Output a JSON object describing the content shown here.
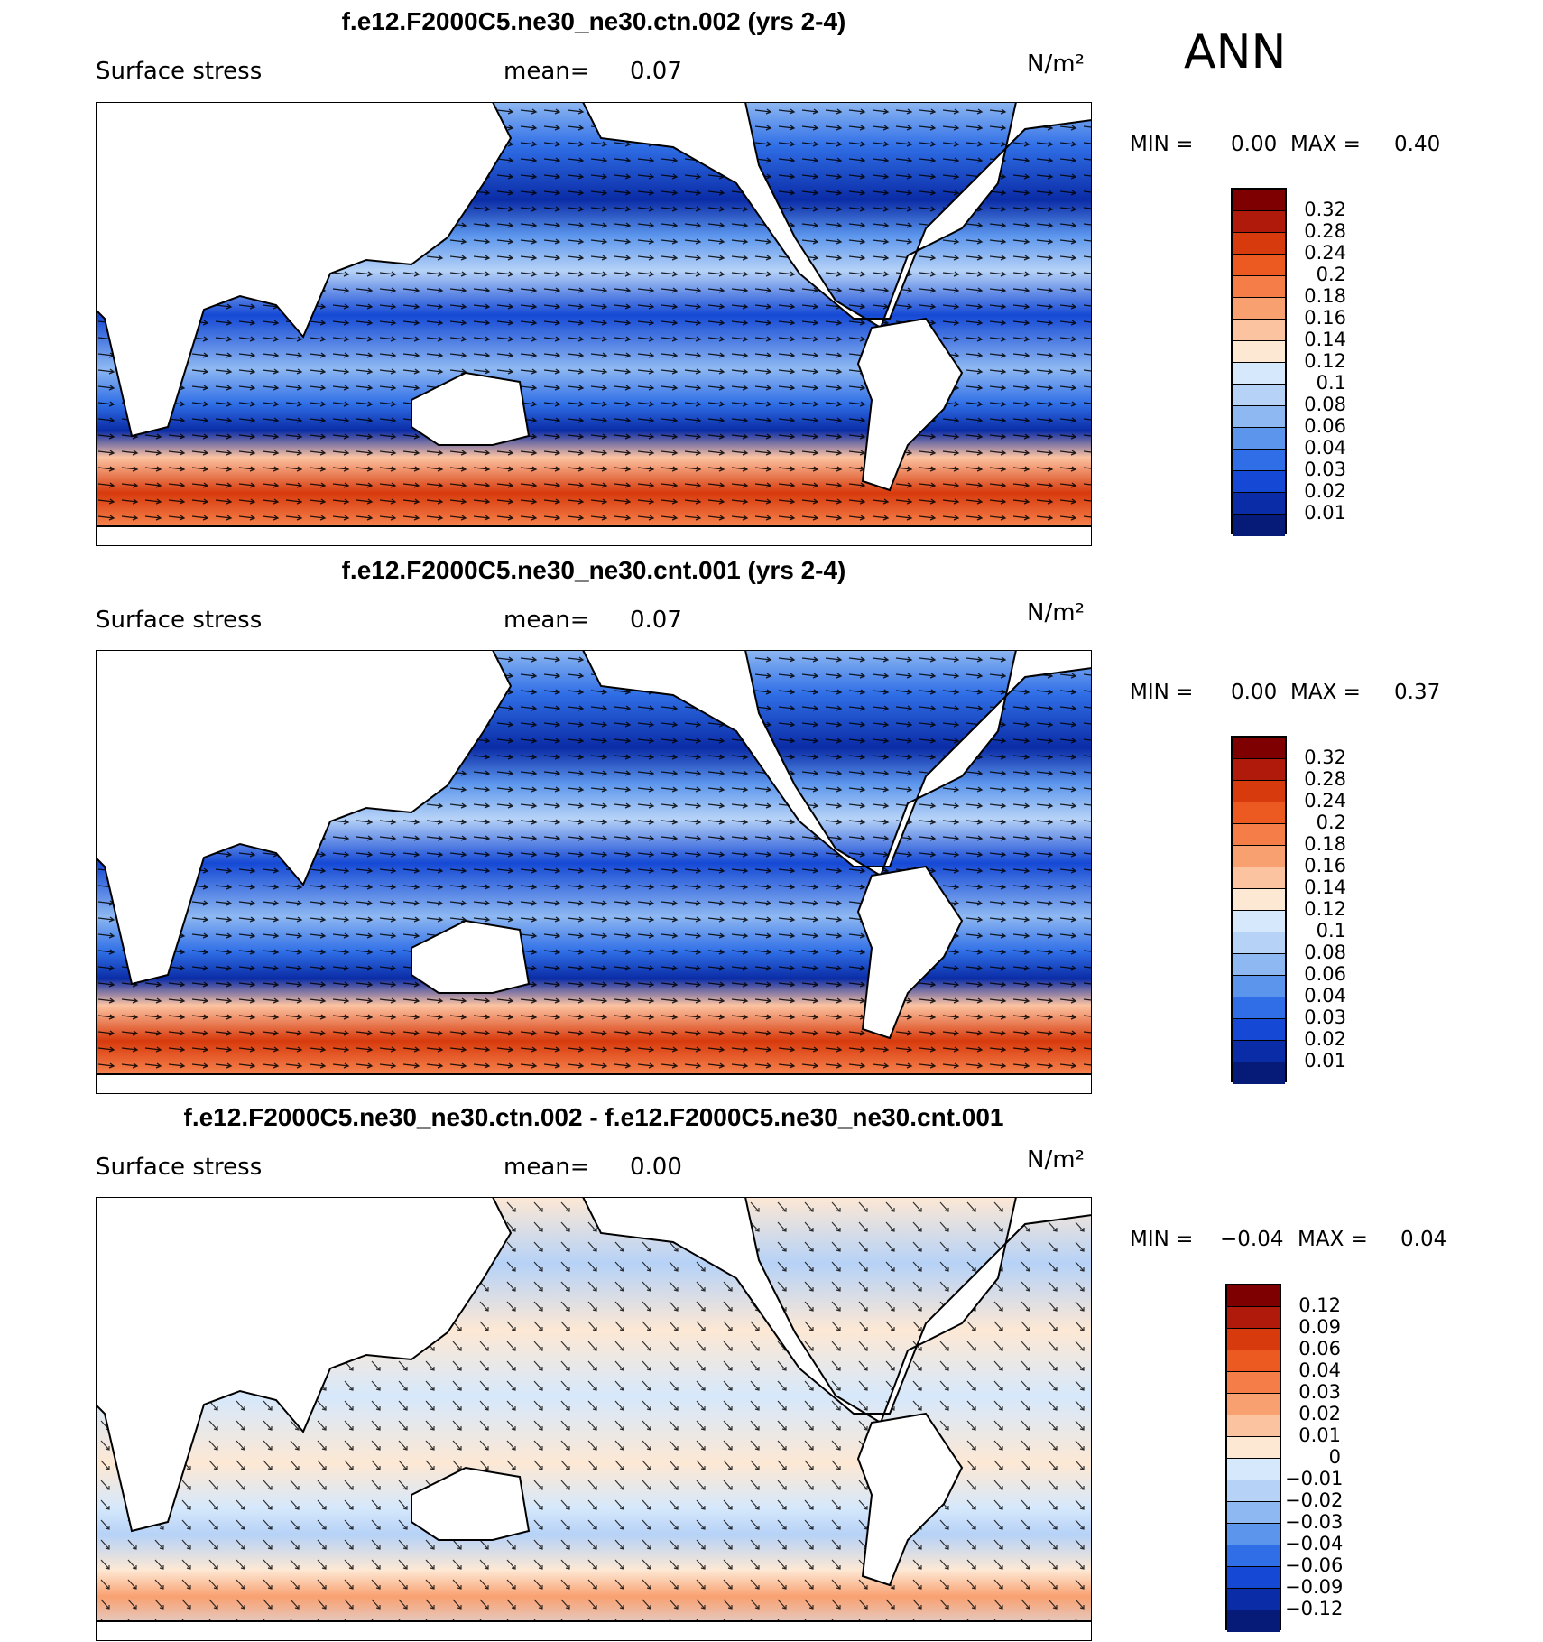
{
  "season": "ANN",
  "panels": [
    {
      "title": "f.e12.F2000C5.ne30_ne30.ctn.002 (yrs 2-4)",
      "variable": "Surface stress",
      "mean_label": "mean=",
      "mean_value": "0.07",
      "units": "N/m²",
      "min_label": "MIN =",
      "min_value": "0.00",
      "max_label": "MAX =",
      "max_value": "0.40",
      "colorbar_labels": [
        "0.32",
        "0.28",
        "0.24",
        "0.2",
        "0.18",
        "0.16",
        "0.14",
        "0.12",
        "0.1",
        "0.08",
        "0.06",
        "0.04",
        "0.03",
        "0.02",
        "0.01"
      ],
      "colorbar_colors": [
        "#7f0000",
        "#b01a0a",
        "#d73a0c",
        "#ec5a22",
        "#f47d48",
        "#f9a070",
        "#fcc3a1",
        "#fde8d4",
        "#d6e8fb",
        "#b6d2f7",
        "#8eb8f2",
        "#5b95ec",
        "#2f6ee6",
        "#1549d5",
        "#0a2ca6",
        "#061a78"
      ]
    },
    {
      "title": "f.e12.F2000C5.ne30_ne30.cnt.001 (yrs 2-4)",
      "variable": "Surface stress",
      "mean_label": "mean=",
      "mean_value": "0.07",
      "units": "N/m²",
      "min_label": "MIN =",
      "min_value": "0.00",
      "max_label": "MAX =",
      "max_value": "0.37",
      "colorbar_labels": [
        "0.32",
        "0.28",
        "0.24",
        "0.2",
        "0.18",
        "0.16",
        "0.14",
        "0.12",
        "0.1",
        "0.08",
        "0.06",
        "0.04",
        "0.03",
        "0.02",
        "0.01"
      ],
      "colorbar_colors": [
        "#7f0000",
        "#b01a0a",
        "#d73a0c",
        "#ec5a22",
        "#f47d48",
        "#f9a070",
        "#fcc3a1",
        "#fde8d4",
        "#d6e8fb",
        "#b6d2f7",
        "#8eb8f2",
        "#5b95ec",
        "#2f6ee6",
        "#1549d5",
        "#0a2ca6",
        "#061a78"
      ]
    },
    {
      "title": "f.e12.F2000C5.ne30_ne30.ctn.002 - f.e12.F2000C5.ne30_ne30.cnt.001",
      "variable": "Surface stress",
      "mean_label": "mean=",
      "mean_value": "0.00",
      "units": "N/m²",
      "min_label": "MIN =",
      "min_value": "−0.04",
      "max_label": "MAX =",
      "max_value": "0.04",
      "colorbar_labels": [
        "0.12",
        "0.09",
        "0.06",
        "0.04",
        "0.03",
        "0.02",
        "0.01",
        "0",
        "−0.01",
        "−0.02",
        "−0.03",
        "−0.04",
        "−0.06",
        "−0.09",
        "−0.12"
      ],
      "colorbar_colors": [
        "#7f0000",
        "#b01a0a",
        "#d73a0c",
        "#ec5a22",
        "#f47d48",
        "#f9a070",
        "#fcc3a1",
        "#fde8d4",
        "#d6e8fb",
        "#b6d2f7",
        "#8eb8f2",
        "#5b95ec",
        "#2f6ee6",
        "#1549d5",
        "#0a2ca6",
        "#061a78"
      ]
    }
  ]
}
